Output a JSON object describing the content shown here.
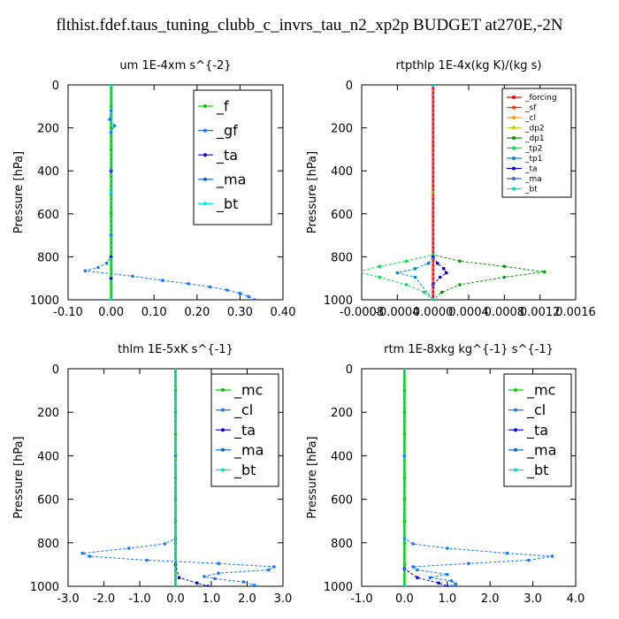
{
  "figure_title": "flthist.fdef.taus_tuning_clubb_c_invrs_tau_n2_xp2p  BUDGET at270E,-2N",
  "chart_data": [
    {
      "type": "line",
      "title": "um   1E-4xm s^{-2}",
      "ylabel": "Pressure [hPa]",
      "ylim": [
        1000,
        0
      ],
      "yticks": [
        0,
        200,
        400,
        600,
        800,
        1000
      ],
      "xlim": [
        -0.1,
        0.4
      ],
      "xticks": [
        -0.1,
        0.0,
        0.1,
        0.2,
        0.3,
        0.4
      ],
      "xtick_labels": [
        "-0.10",
        "0.00",
        "0.10",
        "0.20",
        "0.30",
        "0.40"
      ],
      "legend_position": "top-right",
      "series": [
        {
          "name": "_f",
          "color": "#00cc00",
          "points": [
            [
              0.0,
              0
            ],
            [
              0.0,
              100
            ],
            [
              0.0,
              200
            ],
            [
              0.0,
              300
            ],
            [
              0.0,
              400
            ],
            [
              0.0,
              500
            ],
            [
              0.0,
              600
            ],
            [
              0.0,
              700
            ],
            [
              0.0,
              800
            ],
            [
              0.0,
              900
            ],
            [
              0.0,
              1000
            ]
          ]
        },
        {
          "name": "_gf",
          "color": "#1177ff",
          "points": [
            [
              0.0,
              0
            ],
            [
              0.0,
              120
            ],
            [
              -0.003,
              160
            ],
            [
              0.008,
              190
            ],
            [
              0.0,
              220
            ],
            [
              0.0,
              400
            ],
            [
              0.0,
              700
            ],
            [
              0.0,
              800
            ],
            [
              -0.01,
              830
            ],
            [
              -0.03,
              850
            ],
            [
              -0.06,
              865
            ],
            [
              0.05,
              890
            ],
            [
              0.12,
              910
            ],
            [
              0.18,
              925
            ],
            [
              0.23,
              940
            ],
            [
              0.27,
              955
            ],
            [
              0.3,
              970
            ],
            [
              0.32,
              985
            ],
            [
              0.335,
              1000
            ]
          ]
        },
        {
          "name": "_ta",
          "color": "#0000dd",
          "points": [
            [
              0.0,
              0
            ],
            [
              0.0,
              400
            ],
            [
              0.0,
              800
            ],
            [
              0.0,
              900
            ],
            [
              0.0,
              1000
            ]
          ]
        },
        {
          "name": "_ma",
          "color": "#0066cc",
          "points": [
            [
              0.0,
              0
            ],
            [
              0.0,
              500
            ],
            [
              0.0,
              1000
            ]
          ]
        },
        {
          "name": "_bt",
          "color": "#00dddd",
          "points": [
            [
              0.0,
              0
            ],
            [
              0.0,
              500
            ],
            [
              0.0,
              1000
            ]
          ]
        }
      ]
    },
    {
      "type": "line",
      "title": "rtpthlp   1E-4x(kg K)/(kg s)",
      "ylabel": "Pressure [hPa]",
      "ylim": [
        1000,
        0
      ],
      "yticks": [
        0,
        200,
        400,
        600,
        800,
        1000
      ],
      "xlim": [
        -0.0008,
        0.0016
      ],
      "xticks": [
        -0.0008,
        -0.0004,
        0.0,
        0.0004,
        0.0008,
        0.0012,
        0.0016
      ],
      "xtick_labels": [
        "-0.0008",
        "-0.0004",
        "0.0000",
        "0.0004",
        "0.0008",
        "0.0012",
        "0.0016"
      ],
      "legend_position": "top-right",
      "series": [
        {
          "name": "_forcing",
          "color": "#ff0000",
          "points": [
            [
              0.0,
              0
            ],
            [
              0.0,
              500
            ],
            [
              0.0,
              1000
            ]
          ]
        },
        {
          "name": "_sf",
          "color": "#ff3300",
          "points": [
            [
              0.0,
              0
            ],
            [
              0.0,
              500
            ],
            [
              0.0,
              1000
            ]
          ]
        },
        {
          "name": "_cl",
          "color": "#ff9900",
          "points": [
            [
              0.0,
              0
            ],
            [
              0.0,
              500
            ],
            [
              0.0,
              1000
            ]
          ]
        },
        {
          "name": "_dp2",
          "color": "#cccc00",
          "points": [
            [
              0.0,
              0
            ],
            [
              0.0,
              500
            ],
            [
              0.0,
              1000
            ]
          ]
        },
        {
          "name": "_dp1",
          "color": "#009900",
          "points": [
            [
              0.0,
              0
            ],
            [
              0.0,
              790
            ],
            [
              0.0003,
              820
            ],
            [
              0.0008,
              845
            ],
            [
              0.00125,
              870
            ],
            [
              0.0008,
              895
            ],
            [
              0.0003,
              930
            ],
            [
              0.0001,
              965
            ],
            [
              0.0,
              1000
            ]
          ]
        },
        {
          "name": "_tp2",
          "color": "#00dd44",
          "points": [
            [
              0.0,
              0
            ],
            [
              0.0,
              790
            ],
            [
              -0.0003,
              820
            ],
            [
              -0.0006,
              845
            ],
            [
              -0.00085,
              870
            ],
            [
              -0.0006,
              895
            ],
            [
              -0.0003,
              930
            ],
            [
              -0.0001,
              965
            ],
            [
              0.0,
              1000
            ]
          ]
        },
        {
          "name": "_tp1",
          "color": "#0088cc",
          "points": [
            [
              0.0,
              0
            ],
            [
              0.0,
              800
            ],
            [
              -5e-05,
              830
            ],
            [
              -0.0002,
              855
            ],
            [
              -0.0004,
              875
            ],
            [
              -0.0002,
              895
            ],
            [
              0.0,
              1000
            ]
          ]
        },
        {
          "name": "_ta",
          "color": "#0000dd",
          "points": [
            [
              0.0,
              0
            ],
            [
              0.0,
              800
            ],
            [
              5e-05,
              830
            ],
            [
              0.00012,
              855
            ],
            [
              0.00015,
              875
            ],
            [
              8e-05,
              895
            ],
            [
              0.0,
              930
            ],
            [
              0.0,
              1000
            ]
          ]
        },
        {
          "name": "_ma",
          "color": "#3366cc",
          "points": [
            [
              0.0,
              0
            ],
            [
              0.0,
              1000
            ]
          ]
        },
        {
          "name": "_bt",
          "color": "#00dddd",
          "points": [
            [
              0.0,
              0
            ],
            [
              0.0,
              1000
            ]
          ]
        }
      ]
    },
    {
      "type": "line",
      "title": "thlm   1E-5xK s^{-1}",
      "ylabel": "Pressure [hPa]",
      "ylim": [
        1000,
        0
      ],
      "yticks": [
        0,
        200,
        400,
        600,
        800,
        1000
      ],
      "xlim": [
        -3.0,
        3.0
      ],
      "xticks": [
        -3.0,
        -2.0,
        -1.0,
        0.0,
        1.0,
        2.0,
        3.0
      ],
      "xtick_labels": [
        "-3.0",
        "-2.0",
        "-1.0",
        "0.0",
        "1.0",
        "2.0",
        "3.0"
      ],
      "legend_position": "top-right",
      "series": [
        {
          "name": "_mc",
          "color": "#00cc00",
          "points": [
            [
              0.0,
              0
            ],
            [
              0.0,
              100
            ],
            [
              0.0,
              200
            ],
            [
              0.0,
              300
            ],
            [
              0.0,
              400
            ],
            [
              0.0,
              500
            ],
            [
              0.0,
              600
            ],
            [
              0.0,
              700
            ],
            [
              0.0,
              800
            ],
            [
              0.0,
              900
            ],
            [
              0.0,
              1000
            ]
          ]
        },
        {
          "name": "_cl",
          "color": "#1177ff",
          "points": [
            [
              0.0,
              0
            ],
            [
              0.0,
              400
            ],
            [
              0.0,
              780
            ],
            [
              -0.3,
              805
            ],
            [
              -1.3,
              825
            ],
            [
              -2.6,
              848
            ],
            [
              -2.4,
              862
            ],
            [
              -0.8,
              880
            ],
            [
              1.2,
              895
            ],
            [
              2.75,
              910
            ],
            [
              2.6,
              925
            ],
            [
              1.2,
              940
            ],
            [
              0.8,
              955
            ],
            [
              1.1,
              965
            ],
            [
              1.9,
              980
            ],
            [
              2.2,
              995
            ]
          ]
        },
        {
          "name": "_ta",
          "color": "#0000dd",
          "points": [
            [
              0.0,
              0
            ],
            [
              0.0,
              900
            ],
            [
              0.1,
              960
            ],
            [
              0.6,
              985
            ],
            [
              0.9,
              1000
            ]
          ]
        },
        {
          "name": "_ma",
          "color": "#0066cc",
          "points": [
            [
              0.0,
              0
            ],
            [
              0.0,
              1000
            ]
          ]
        },
        {
          "name": "_bt",
          "color": "#00dddd",
          "points": [
            [
              0.0,
              0
            ],
            [
              0.0,
              1000
            ]
          ]
        }
      ]
    },
    {
      "type": "line",
      "title": "rtm   1E-8xkg kg^{-1} s^{-1}",
      "ylabel": "Pressure [hPa]",
      "ylim": [
        1000,
        0
      ],
      "yticks": [
        0,
        200,
        400,
        600,
        800,
        1000
      ],
      "xlim": [
        -1.0,
        4.0
      ],
      "xticks": [
        -1.0,
        0.0,
        1.0,
        2.0,
        3.0,
        4.0
      ],
      "xtick_labels": [
        "-1.0",
        "0.0",
        "1.0",
        "2.0",
        "3.0",
        "4.0"
      ],
      "legend_position": "top-right",
      "series": [
        {
          "name": "_mc",
          "color": "#00cc00",
          "points": [
            [
              0.0,
              0
            ],
            [
              0.0,
              100
            ],
            [
              0.0,
              200
            ],
            [
              0.0,
              300
            ],
            [
              0.0,
              400
            ],
            [
              0.0,
              500
            ],
            [
              0.0,
              600
            ],
            [
              0.0,
              700
            ],
            [
              0.0,
              800
            ],
            [
              0.0,
              900
            ],
            [
              0.0,
              1000
            ]
          ]
        },
        {
          "name": "_cl",
          "color": "#1177ff",
          "points": [
            [
              0.0,
              0
            ],
            [
              0.0,
              400
            ],
            [
              0.0,
              780
            ],
            [
              0.2,
              805
            ],
            [
              1.0,
              825
            ],
            [
              2.4,
              848
            ],
            [
              3.45,
              862
            ],
            [
              2.9,
              880
            ],
            [
              1.5,
              895
            ],
            [
              0.2,
              910
            ],
            [
              0.3,
              925
            ],
            [
              1.0,
              945
            ],
            [
              0.6,
              960
            ],
            [
              1.1,
              975
            ],
            [
              1.2,
              990
            ],
            [
              1.1,
              1000
            ]
          ]
        },
        {
          "name": "_ta",
          "color": "#0000dd",
          "points": [
            [
              0.0,
              0
            ],
            [
              0.0,
              920
            ],
            [
              0.3,
              960
            ],
            [
              0.8,
              985
            ],
            [
              1.0,
              1000
            ]
          ]
        },
        {
          "name": "_ma",
          "color": "#0066cc",
          "points": [
            [
              0.0,
              0
            ],
            [
              0.0,
              1000
            ]
          ]
        },
        {
          "name": "_bt",
          "color": "#00dddd",
          "points": [
            [
              0.0,
              0
            ],
            [
              0.0,
              1000
            ]
          ]
        }
      ]
    }
  ]
}
